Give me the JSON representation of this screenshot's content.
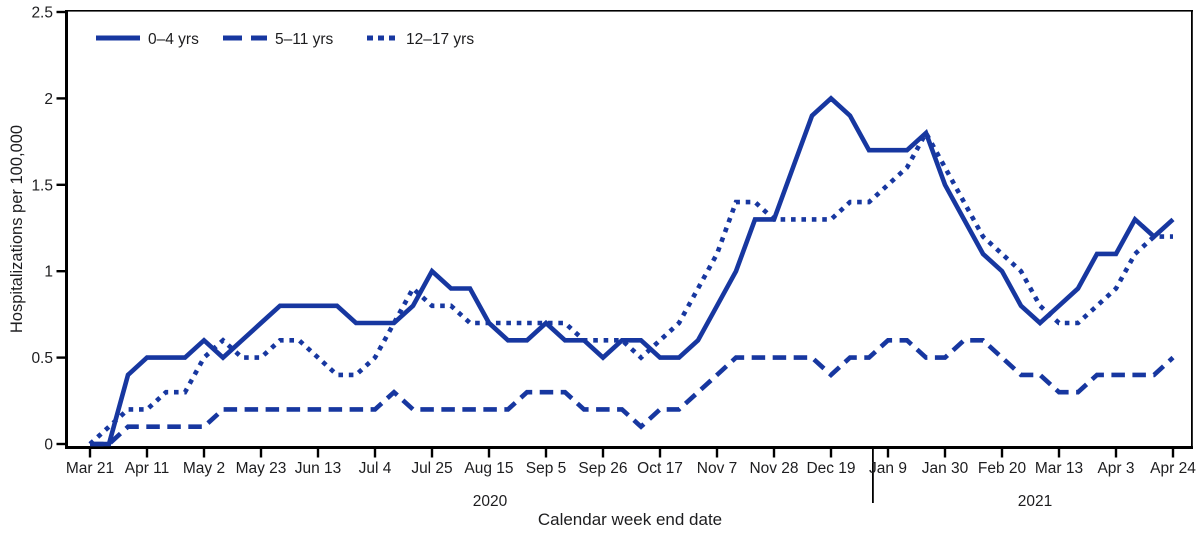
{
  "chart_data": {
    "type": "line",
    "xlabel": "Calendar week end date",
    "ylabel": "Hospitalizations per 100,000",
    "ylim": [
      0,
      2.5
    ],
    "y_tick_values": [
      0,
      0.5,
      1,
      1.5,
      2,
      2.5
    ],
    "y_tick_labels": [
      "0",
      "0.5",
      "1",
      "1.5",
      "2",
      "2.5"
    ],
    "x_tick_step": 3,
    "grid": "off",
    "legend_position": "top-left-inside",
    "line_color": "#1737A0",
    "frame_color": "#000000",
    "years": [
      "2020",
      "2021"
    ],
    "year_break_after_index": 40,
    "categories": [
      "Mar 21",
      "Mar 28",
      "Apr 4",
      "Apr 11",
      "Apr 18",
      "Apr 25",
      "May 2",
      "May 9",
      "May 16",
      "May 23",
      "May 30",
      "Jun 6",
      "Jun 13",
      "Jun 20",
      "Jun 27",
      "Jul 4",
      "Jul 11",
      "Jul 18",
      "Jul 25",
      "Aug 1",
      "Aug 8",
      "Aug 15",
      "Aug 22",
      "Aug 29",
      "Sep 5",
      "Sep 12",
      "Sep 19",
      "Sep 26",
      "Oct 3",
      "Oct 10",
      "Oct 17",
      "Oct 24",
      "Oct 31",
      "Nov 7",
      "Nov 14",
      "Nov 21",
      "Nov 28",
      "Dec 5",
      "Dec 12",
      "Dec 19",
      "Dec 26",
      "Jan 2",
      "Jan 9",
      "Jan 16",
      "Jan 23",
      "Jan 30",
      "Feb 6",
      "Feb 13",
      "Feb 20",
      "Feb 27",
      "Mar 6",
      "Mar 13",
      "Mar 20",
      "Mar 27",
      "Apr 3",
      "Apr 10",
      "Apr 17",
      "Apr 24"
    ],
    "series": [
      {
        "name": "0–4 yrs",
        "style": "solid",
        "values": [
          0.0,
          0.0,
          0.4,
          0.5,
          0.5,
          0.5,
          0.6,
          0.5,
          0.6,
          0.7,
          0.8,
          0.8,
          0.8,
          0.8,
          0.7,
          0.7,
          0.7,
          0.8,
          1.0,
          0.9,
          0.9,
          0.7,
          0.6,
          0.6,
          0.7,
          0.6,
          0.6,
          0.5,
          0.6,
          0.6,
          0.5,
          0.5,
          0.6,
          0.8,
          1.0,
          1.3,
          1.3,
          1.6,
          1.9,
          2.0,
          1.9,
          1.7,
          1.7,
          1.7,
          1.8,
          1.5,
          1.3,
          1.1,
          1.0,
          0.8,
          0.7,
          0.8,
          0.9,
          1.1,
          1.1,
          1.3,
          1.2,
          1.3
        ]
      },
      {
        "name": "5–11 yrs",
        "style": "dashed",
        "values": [
          0.0,
          0.0,
          0.1,
          0.1,
          0.1,
          0.1,
          0.1,
          0.2,
          0.2,
          0.2,
          0.2,
          0.2,
          0.2,
          0.2,
          0.2,
          0.2,
          0.3,
          0.2,
          0.2,
          0.2,
          0.2,
          0.2,
          0.2,
          0.3,
          0.3,
          0.3,
          0.2,
          0.2,
          0.2,
          0.1,
          0.2,
          0.2,
          0.3,
          0.4,
          0.5,
          0.5,
          0.5,
          0.5,
          0.5,
          0.4,
          0.5,
          0.5,
          0.6,
          0.6,
          0.5,
          0.5,
          0.6,
          0.6,
          0.5,
          0.4,
          0.4,
          0.3,
          0.3,
          0.4,
          0.4,
          0.4,
          0.4,
          0.5
        ]
      },
      {
        "name": "12–17 yrs",
        "style": "dotted",
        "values": [
          0.0,
          0.1,
          0.2,
          0.2,
          0.3,
          0.3,
          0.5,
          0.6,
          0.5,
          0.5,
          0.6,
          0.6,
          0.5,
          0.4,
          0.4,
          0.5,
          0.7,
          0.9,
          0.8,
          0.8,
          0.7,
          0.7,
          0.7,
          0.7,
          0.7,
          0.7,
          0.6,
          0.6,
          0.6,
          0.5,
          0.6,
          0.7,
          0.9,
          1.1,
          1.4,
          1.4,
          1.3,
          1.3,
          1.3,
          1.3,
          1.4,
          1.4,
          1.5,
          1.6,
          1.8,
          1.6,
          1.4,
          1.2,
          1.1,
          1.0,
          0.8,
          0.7,
          0.7,
          0.8,
          0.9,
          1.1,
          1.2,
          1.2
        ]
      }
    ]
  }
}
